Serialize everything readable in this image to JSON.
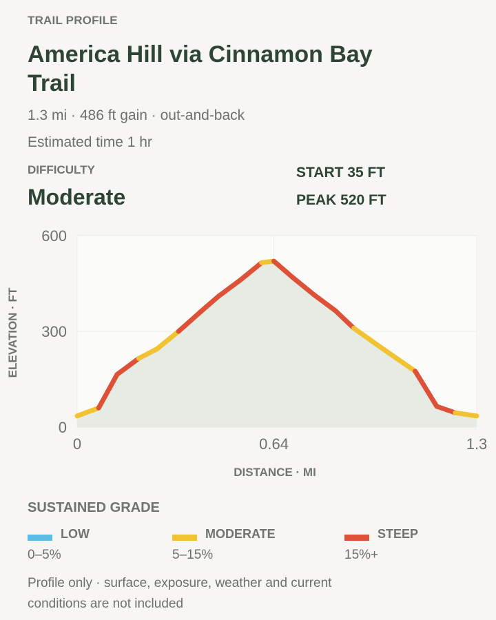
{
  "header": {
    "eyebrow": "TRAIL PROFILE",
    "title": "America Hill via Cinnamon Bay Trail",
    "stats": "1.3 mi · 486 ft gain · out-and-back",
    "time": "Estimated time 1 hr"
  },
  "difficulty": {
    "label": "DIFFICULTY",
    "value": "Moderate"
  },
  "elevation_summary": {
    "start": "START 35 FT",
    "peak": "PEAK 520 FT"
  },
  "chart_data": {
    "type": "area",
    "title": "",
    "xlabel": "DISTANCE · MI",
    "ylabel": "ELEVATION · FT",
    "xlim": [
      0,
      1.3
    ],
    "ylim": [
      0,
      600
    ],
    "x_ticks": [
      0,
      0.64,
      1.3
    ],
    "x_tick_labels": [
      "0",
      "0.64",
      "1.3"
    ],
    "y_ticks": [
      0,
      300,
      600
    ],
    "y_tick_labels": [
      "0",
      "300",
      "600"
    ],
    "grid": true,
    "fill_color": "#e6ece4",
    "x": [
      0,
      0.07,
      0.13,
      0.2,
      0.26,
      0.33,
      0.4,
      0.46,
      0.53,
      0.6,
      0.64,
      0.7,
      0.77,
      0.84,
      0.9,
      0.97,
      1.04,
      1.1,
      1.17,
      1.23,
      1.3
    ],
    "elevation": [
      35,
      60,
      165,
      215,
      245,
      300,
      360,
      410,
      460,
      515,
      520,
      470,
      415,
      365,
      310,
      262,
      215,
      175,
      65,
      45,
      35
    ],
    "segment_grades": [
      "moderate",
      "steep",
      "steep",
      "moderate",
      "moderate",
      "steep",
      "steep",
      "steep",
      "steep",
      "moderate",
      "steep",
      "steep",
      "steep",
      "steep",
      "moderate",
      "moderate",
      "moderate",
      "steep",
      "steep",
      "moderate"
    ]
  },
  "grade_legend": {
    "title": "SUSTAINED GRADE",
    "items": [
      {
        "key": "low",
        "name": "LOW",
        "range": "0–5%",
        "color": "#5bbde6"
      },
      {
        "key": "moderate",
        "name": "MODERATE",
        "range": "5–15%",
        "color": "#f1c232"
      },
      {
        "key": "steep",
        "name": "STEEP",
        "range": "15%+",
        "color": "#dd5138"
      }
    ]
  },
  "footnote": "Profile only · surface, exposure, weather and current conditions are not included"
}
